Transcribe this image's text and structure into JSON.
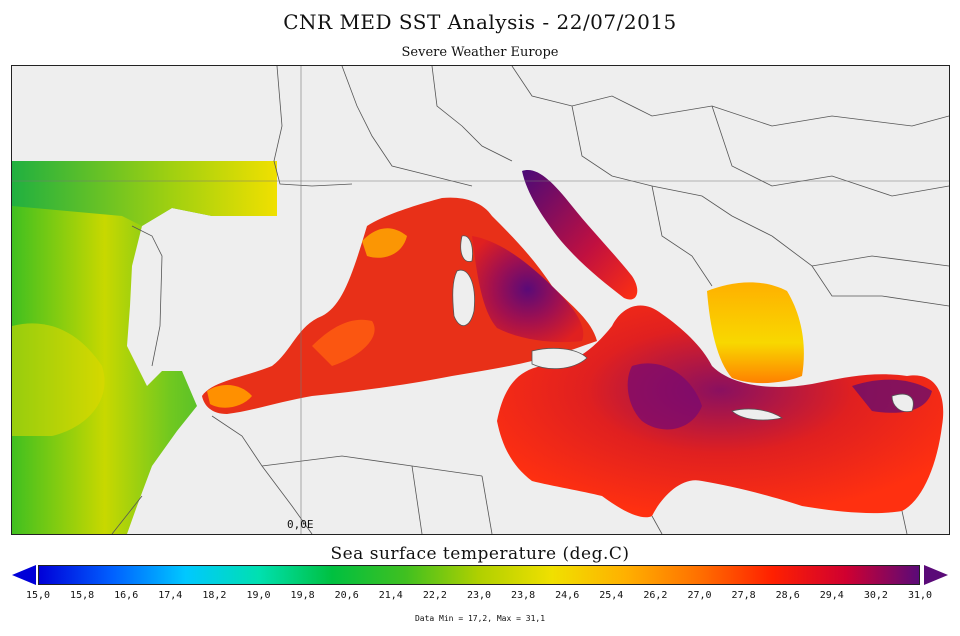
{
  "title": "CNR MED SST Analysis - 22/07/2015",
  "subtitle": "Severe Weather Europe",
  "map": {
    "longitude_label": "0,0E",
    "land_color": "#eeeeee",
    "border_color": "#555555"
  },
  "colorbar": {
    "title": "Sea surface temperature (deg.C)",
    "min": 15.0,
    "max": 31.0,
    "tick_labels": [
      "15,0",
      "15,8",
      "16,6",
      "17,4",
      "18,2",
      "19,0",
      "19,8",
      "20,6",
      "21,4",
      "22,2",
      "23,0",
      "23,8",
      "24,6",
      "25,4",
      "26,2",
      "27,0",
      "27,8",
      "28,6",
      "29,4",
      "30,2",
      "31,0"
    ],
    "colors": [
      "#0000d8",
      "#0060ff",
      "#00c8ff",
      "#00e0b0",
      "#00c040",
      "#40c020",
      "#b0d000",
      "#f0e000",
      "#ffb000",
      "#ff7000",
      "#ff2000",
      "#d00030",
      "#5a0a78"
    ],
    "under_color": "#0000d8",
    "over_color": "#5a0a78"
  },
  "data_range_text": "Data Min = 17,2, Max = 31,1"
}
